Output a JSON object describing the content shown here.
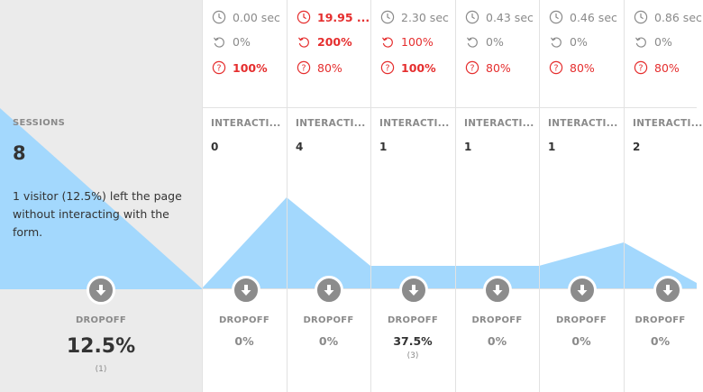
{
  "summary": {
    "sessions_label": "SESSIONS",
    "sessions_value": "8",
    "note": "1 visitor (12.5%) left the page without interacting with the form.",
    "dropoff_label": "DROPOFF",
    "dropoff_value": "12.5%",
    "dropoff_count": "(1)"
  },
  "columns": [
    {
      "time": "0.00 sec",
      "time_alert": false,
      "refill": "0%",
      "refill_alert": false,
      "help": "100%",
      "help_alert": true,
      "help_bold": true,
      "interaction_label": "INTERACTI...",
      "interaction_value": "0",
      "dropoff_label": "DROPOFF",
      "dropoff_value": "0%",
      "dropoff_count": ""
    },
    {
      "time": "19.95 ...",
      "time_alert": true,
      "refill": "200%",
      "refill_alert": true,
      "help": "80%",
      "help_alert": true,
      "help_bold": false,
      "interaction_label": "INTERACTI...",
      "interaction_value": "4",
      "dropoff_label": "DROPOFF",
      "dropoff_value": "0%",
      "dropoff_count": ""
    },
    {
      "time": "2.30 sec",
      "time_alert": false,
      "refill": "100%",
      "refill_alert": true,
      "help": "100%",
      "help_alert": true,
      "help_bold": true,
      "interaction_label": "INTERACTI...",
      "interaction_value": "1",
      "dropoff_label": "DROPOFF",
      "dropoff_value": "37.5%",
      "dropoff_count": "(3)"
    },
    {
      "time": "0.43 sec",
      "time_alert": false,
      "refill": "0%",
      "refill_alert": false,
      "help": "80%",
      "help_alert": true,
      "help_bold": false,
      "interaction_label": "INTERACTI...",
      "interaction_value": "1",
      "dropoff_label": "DROPOFF",
      "dropoff_value": "0%",
      "dropoff_count": ""
    },
    {
      "time": "0.46 sec",
      "time_alert": false,
      "refill": "0%",
      "refill_alert": false,
      "help": "80%",
      "help_alert": true,
      "help_bold": false,
      "interaction_label": "INTERACTI...",
      "interaction_value": "1",
      "dropoff_label": "DROPOFF",
      "dropoff_value": "0%",
      "dropoff_count": ""
    },
    {
      "time": "0.86 sec",
      "time_alert": false,
      "refill": "0%",
      "refill_alert": false,
      "help": "80%",
      "help_alert": true,
      "help_bold": false,
      "interaction_label": "INTERACTI...",
      "interaction_value": "2",
      "dropoff_label": "DROPOFF",
      "dropoff_value": "0%",
      "dropoff_count": ""
    }
  ],
  "colors": {
    "funnel_fill": "#a3d8fd",
    "alert": "#e52e2e",
    "muted": "#8a8a8a",
    "button": "#8c8c8c"
  },
  "icons": {
    "time": "clock-icon",
    "refill": "refill-arrow-icon",
    "help": "help-circle-icon",
    "dropoff": "arrow-down-circle-icon"
  }
}
